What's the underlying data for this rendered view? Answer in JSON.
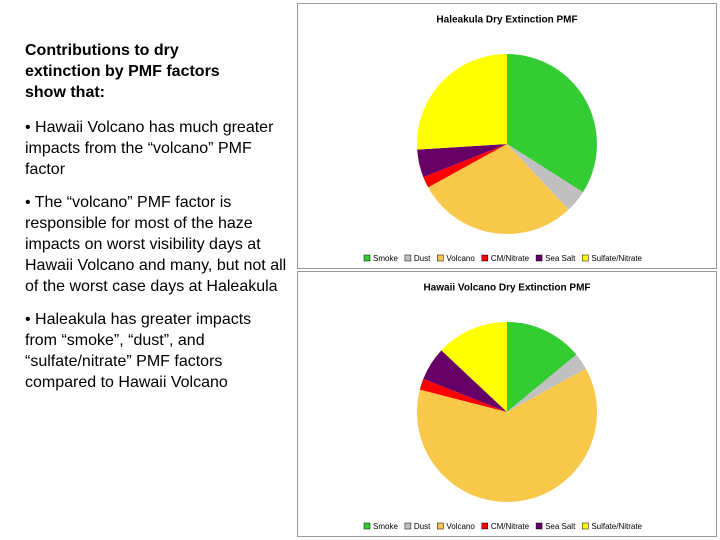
{
  "text": {
    "heading": "Contributions to dry extinction by PMF factors show that:",
    "bullets": [
      "• Hawaii Volcano has much greater impacts from the “volcano” PMF factor",
      "• The “volcano” PMF factor is responsible for most of the haze impacts on worst visibility days at Hawaii Volcano and many, but not all of the worst case days at Haleakula",
      "• Haleakula has greater impacts from “smoke”, “dust”, and “sulfate/nitrate” PMF factors compared to Hawaii Volcano"
    ]
  },
  "chart_data": [
    {
      "type": "pie",
      "title": "Haleakula Dry Extinction PMF",
      "categories": [
        "Smoke",
        "Dust",
        "Volcano",
        "CM/Nitrate",
        "Sea Salt",
        "Sulfate/Nitrate"
      ],
      "values": [
        34,
        4,
        29,
        2,
        5,
        26
      ],
      "colors": [
        "#33cc33",
        "#c0c0c0",
        "#f8c84a",
        "#ff0000",
        "#660066",
        "#ffff00"
      ]
    },
    {
      "type": "pie",
      "title": "Hawaii Volcano Dry Extinction PMF",
      "categories": [
        "Smoke",
        "Dust",
        "Volcano",
        "CM/Nitrate",
        "Sea Salt",
        "Sulfate/Nitrate"
      ],
      "values": [
        14,
        3,
        62,
        2,
        6,
        13
      ],
      "colors": [
        "#33cc33",
        "#c0c0c0",
        "#f8c84a",
        "#ff0000",
        "#660066",
        "#ffff00"
      ]
    }
  ]
}
